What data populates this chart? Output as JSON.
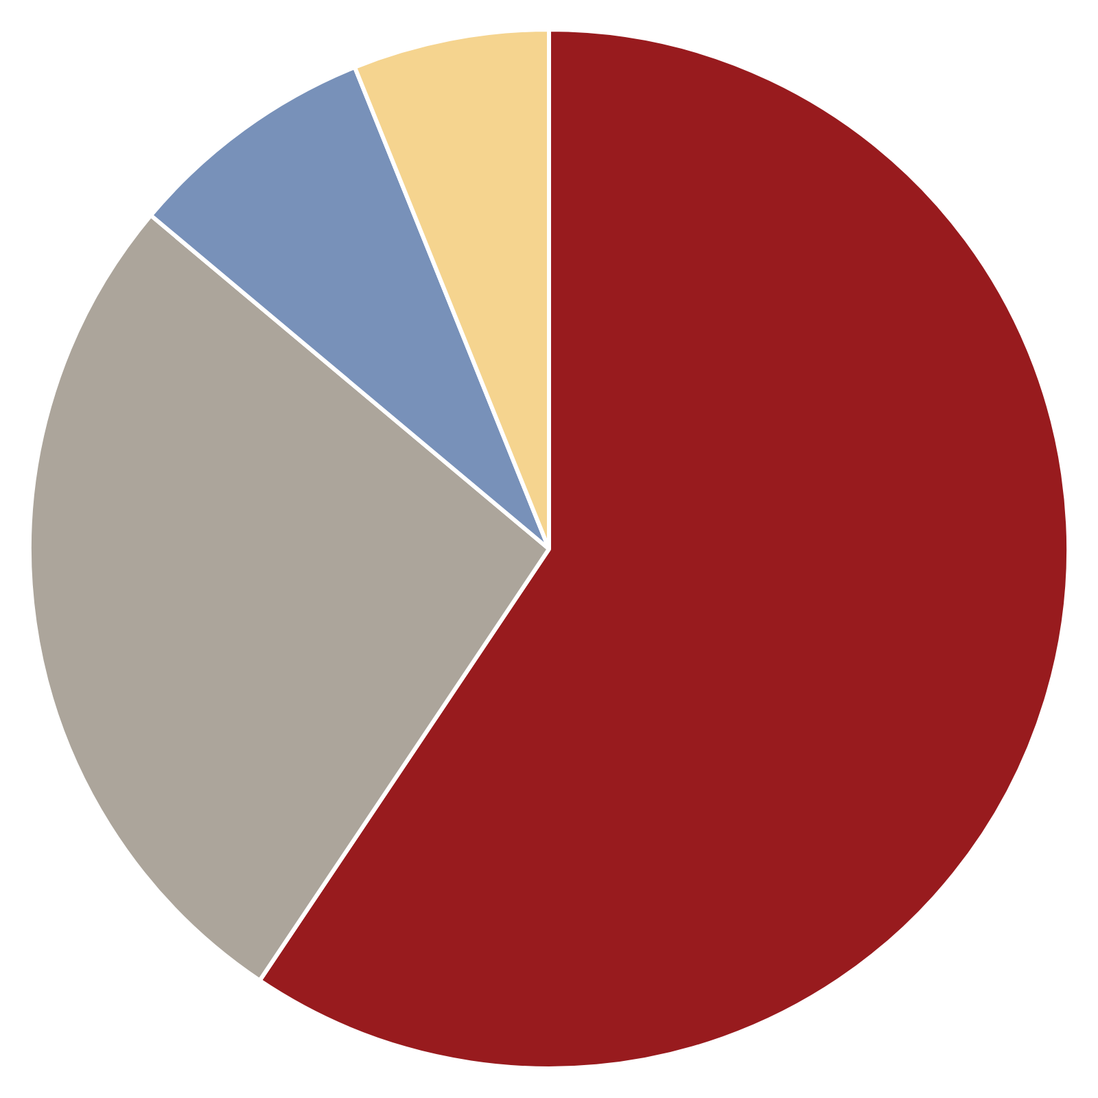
{
  "chart_data": {
    "type": "pie",
    "categories": [
      null,
      null,
      null,
      null
    ],
    "values": [
      59.4,
      26.7,
      7.8,
      6.1
    ],
    "colors": [
      "#981b1e",
      "#aca59b",
      "#7891b9",
      "#f5d48f"
    ],
    "legend": false
  }
}
